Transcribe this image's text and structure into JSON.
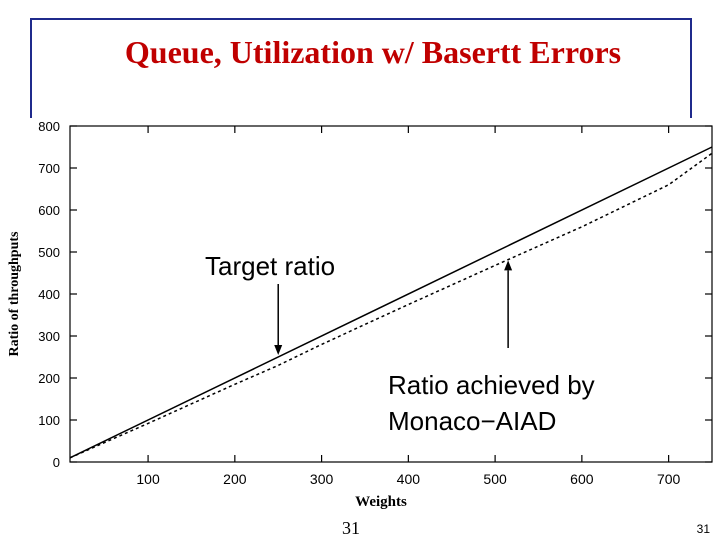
{
  "slide": {
    "title": "Queue, Utilization w/ Basertt Errors",
    "page_number": "31",
    "page_number_small": "31"
  },
  "chart_data": {
    "type": "line",
    "xlabel": "Weights",
    "ylabel": "Ratio of throughputs",
    "xlim": [
      10,
      750
    ],
    "ylim": [
      0,
      800
    ],
    "xticks": [
      100,
      200,
      300,
      400,
      500,
      600,
      700
    ],
    "yticks": [
      0,
      100,
      200,
      300,
      400,
      500,
      600,
      700,
      800
    ],
    "grid": false,
    "series": [
      {
        "name": "Target ratio",
        "style": "solid",
        "x": [
          10,
          750
        ],
        "y": [
          10,
          750
        ]
      },
      {
        "name": "Ratio achieved by Monaco-AIAD",
        "style": "dashed",
        "x": [
          10,
          100,
          200,
          250,
          300,
          400,
          500,
          600,
          700,
          750
        ],
        "y": [
          10,
          92,
          185,
          230,
          280,
          375,
          468,
          560,
          660,
          735
        ]
      }
    ],
    "annotations": [
      {
        "text": "Target ratio",
        "lines": [
          "Target ratio"
        ],
        "x": 250,
        "y": 250
      },
      {
        "text": "Ratio achieved by Monaco-AIAD",
        "lines": [
          "Ratio achieved by",
          "Monaco−AIAD"
        ],
        "x": 515,
        "y": 480
      }
    ],
    "colors": {
      "line": "#000000",
      "title": "#c00000",
      "frame": "#1f2a8c"
    }
  }
}
